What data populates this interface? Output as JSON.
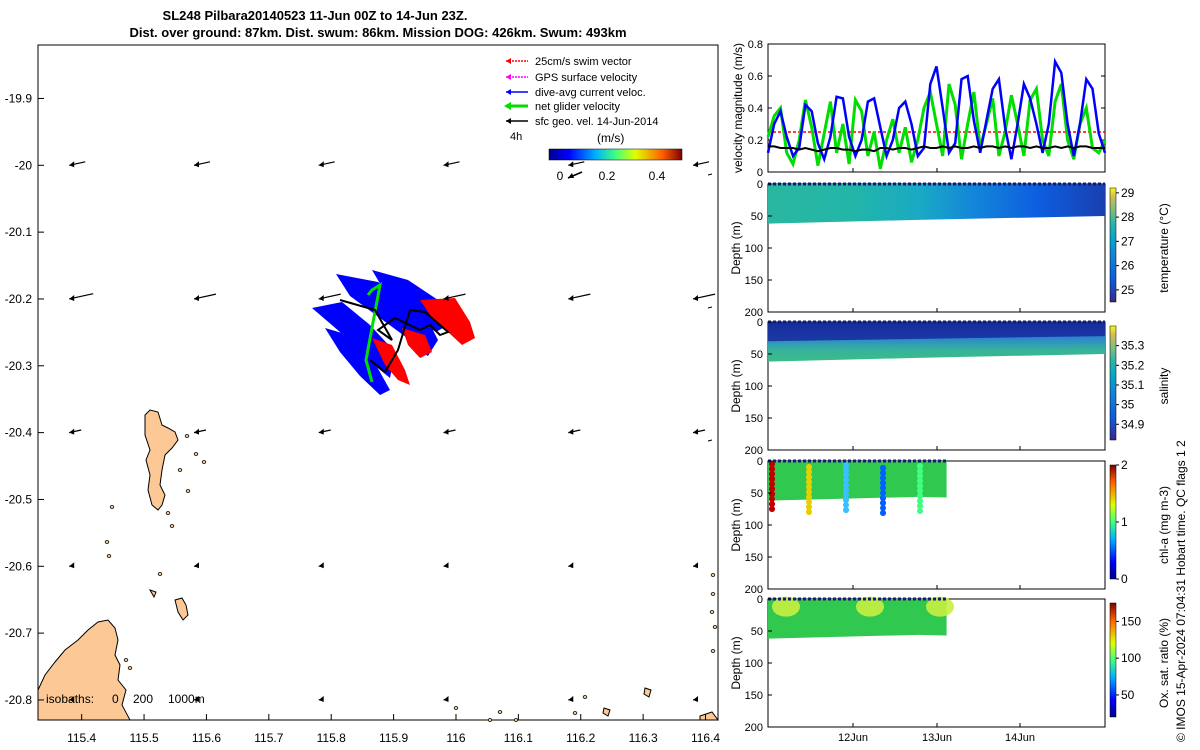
{
  "title": {
    "line1": "SL248 Pilbara20140523 11-Jun 00Z to 14-Jun 23Z.",
    "line2": "Dist. over ground: 87km. Dist. swum: 86km. Mission DOG: 426km. Swum: 493km"
  },
  "colors": {
    "swim": "#ff0000",
    "gps": "#ff00ff",
    "dive_avg": "#0000ff",
    "net": "#00dd00",
    "sfc_geo": "#000000",
    "land": "#fbc896"
  },
  "map": {
    "xlim": [
      115.33,
      116.42
    ],
    "ylim": [
      -20.83,
      -19.82
    ],
    "xticks": [
      "115.4",
      "115.5",
      "115.6",
      "115.7",
      "115.8",
      "115.9",
      "116",
      "116.1",
      "116.2",
      "116.3",
      "116.4"
    ],
    "yticks": [
      "-19.9",
      "-20",
      "-20.1",
      "-20.2",
      "-20.3",
      "-20.4",
      "-20.5",
      "-20.6",
      "-20.7",
      "-20.8"
    ],
    "legend": [
      {
        "label": "25cm/s swim vector",
        "color_key": "swim"
      },
      {
        "label": "GPS surface velocity",
        "color_key": "gps"
      },
      {
        "label": "dive-avg current veloc.",
        "color_key": "dive_avg"
      },
      {
        "label": "net glider velocity",
        "color_key": "net"
      },
      {
        "label": "sfc geo. vel. 14-Jun-2014",
        "color_key": "sfc_geo"
      }
    ],
    "legend_4h": "4h",
    "colorbar_label": "(m/s)",
    "colorbar_ticks": [
      "0",
      "0.2",
      "0.4"
    ],
    "isobaths": [
      "isobaths:",
      "0",
      "200",
      "1000m"
    ]
  },
  "velocity_panel": {
    "ylabel": "velocity magnitude (m/s)",
    "yticks": [
      "0",
      "0.2",
      "0.4",
      "0.6",
      "0.8"
    ],
    "ylim": [
      0,
      0.8
    ],
    "xlim": [
      0,
      96
    ],
    "swim_level": 0.25,
    "dive_avg": [
      0.12,
      0.3,
      0.38,
      0.22,
      0.1,
      0.15,
      0.42,
      0.38,
      0.18,
      0.08,
      0.22,
      0.47,
      0.46,
      0.22,
      0.1,
      0.2,
      0.44,
      0.46,
      0.28,
      0.1,
      0.2,
      0.4,
      0.44,
      0.3,
      0.1,
      0.15,
      0.55,
      0.66,
      0.4,
      0.12,
      0.18,
      0.58,
      0.6,
      0.32,
      0.12,
      0.32,
      0.52,
      0.58,
      0.28,
      0.08,
      0.3,
      0.55,
      0.46,
      0.3,
      0.12,
      0.3,
      0.69,
      0.62,
      0.3,
      0.1,
      0.3,
      0.58,
      0.52,
      0.24,
      0.12
    ],
    "net": [
      0.22,
      0.35,
      0.4,
      0.12,
      0.05,
      0.2,
      0.45,
      0.28,
      0.04,
      0.24,
      0.44,
      0.12,
      0.3,
      0.05,
      0.45,
      0.38,
      0.1,
      0.25,
      0.02,
      0.2,
      0.33,
      0.12,
      0.28,
      0.06,
      0.2,
      0.4,
      0.5,
      0.3,
      0.1,
      0.55,
      0.42,
      0.08,
      0.3,
      0.5,
      0.15,
      0.3,
      0.46,
      0.1,
      0.25,
      0.48,
      0.3,
      0.1,
      0.45,
      0.52,
      0.2,
      0.1,
      0.44,
      0.55,
      0.2,
      0.08,
      0.3,
      0.4,
      0.15,
      0.12,
      0.2
    ],
    "sfc": [
      0.16,
      0.16,
      0.15,
      0.15,
      0.15,
      0.14,
      0.15,
      0.14,
      0.13,
      0.14,
      0.15,
      0.15,
      0.14,
      0.14,
      0.13,
      0.14,
      0.14,
      0.13,
      0.15,
      0.15,
      0.14,
      0.15,
      0.15,
      0.14,
      0.15,
      0.16,
      0.15,
      0.15,
      0.16,
      0.15,
      0.16,
      0.15,
      0.15,
      0.16,
      0.15,
      0.16,
      0.16,
      0.15,
      0.16,
      0.15,
      0.16,
      0.16,
      0.15,
      0.16,
      0.15,
      0.15,
      0.16,
      0.15,
      0.16,
      0.15,
      0.16,
      0.16,
      0.15,
      0.15,
      0.15
    ]
  },
  "depth_panels": {
    "ylabel": "Depth (m)",
    "yticks": [
      "0",
      "50",
      "100",
      "150",
      "200"
    ],
    "ylim": [
      0,
      200
    ],
    "panels": [
      {
        "name": "temperature",
        "cblabel": "temperature (°C)",
        "cbticks": [
          "25",
          "26",
          "27",
          "28",
          "29"
        ],
        "cbrange": [
          24.5,
          29.2
        ],
        "cmap": "parula",
        "extent_frac": 1.0
      },
      {
        "name": "salinity",
        "cblabel": "salinity",
        "cbticks": [
          "34.9",
          "35",
          "35.1",
          "35.2",
          "35.3"
        ],
        "cbrange": [
          34.82,
          35.4
        ],
        "cmap": "parula",
        "extent_frac": 1.0
      },
      {
        "name": "chla",
        "cblabel": "chl-a (mg m-3)",
        "cbticks": [
          "0",
          "1",
          "2"
        ],
        "cbrange": [
          0,
          2
        ],
        "cmap": "jet",
        "extent_frac": 0.53
      },
      {
        "name": "oxygen",
        "cblabel": "Ox. sat. ratio (%)",
        "cbticks": [
          "50",
          "100",
          "150"
        ],
        "cbrange": [
          20,
          175
        ],
        "cmap": "jet",
        "extent_frac": 0.53
      }
    ],
    "xticks": [
      "12Jun",
      "13Jun",
      "14Jun"
    ]
  },
  "footer": "© IMOS 15-Apr-2024 07:04:31 Hobart time. QC flags 1  2"
}
